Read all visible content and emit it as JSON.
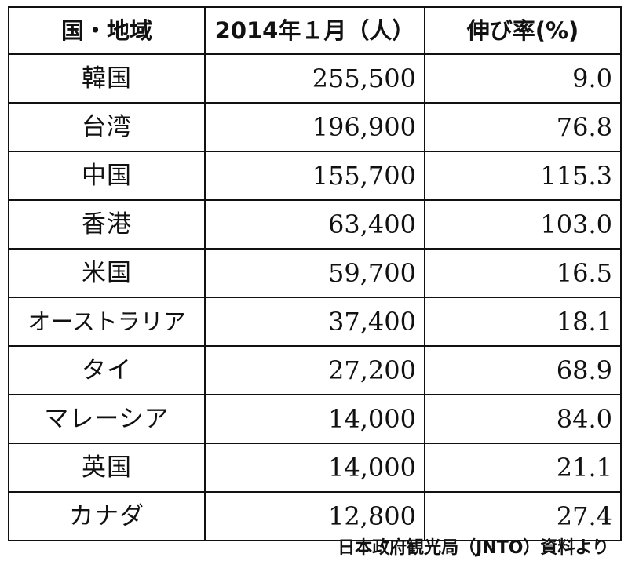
{
  "table": {
    "headers": {
      "region": "国・地域",
      "visitors": "2014年１月（人）",
      "growth": "伸び率(%)"
    },
    "rows": [
      {
        "region": "韓国",
        "visitors": "255,500",
        "growth": "9.0"
      },
      {
        "region": "台湾",
        "visitors": "196,900",
        "growth": "76.8"
      },
      {
        "region": "中国",
        "visitors": "155,700",
        "growth": "115.3"
      },
      {
        "region": "香港",
        "visitors": "63,400",
        "growth": "103.0"
      },
      {
        "region": "米国",
        "visitors": "59,700",
        "growth": "16.5"
      },
      {
        "region": "オーストラリア",
        "visitors": "37,400",
        "growth": "18.1"
      },
      {
        "region": "タイ",
        "visitors": "27,200",
        "growth": "68.9"
      },
      {
        "region": "マレーシア",
        "visitors": "14,000",
        "growth": "84.0"
      },
      {
        "region": "英国",
        "visitors": "14,000",
        "growth": "21.1"
      },
      {
        "region": "カナダ",
        "visitors": "12,800",
        "growth": "27.4"
      }
    ]
  },
  "source": "日本政府観光局（JNTO）資料より"
}
